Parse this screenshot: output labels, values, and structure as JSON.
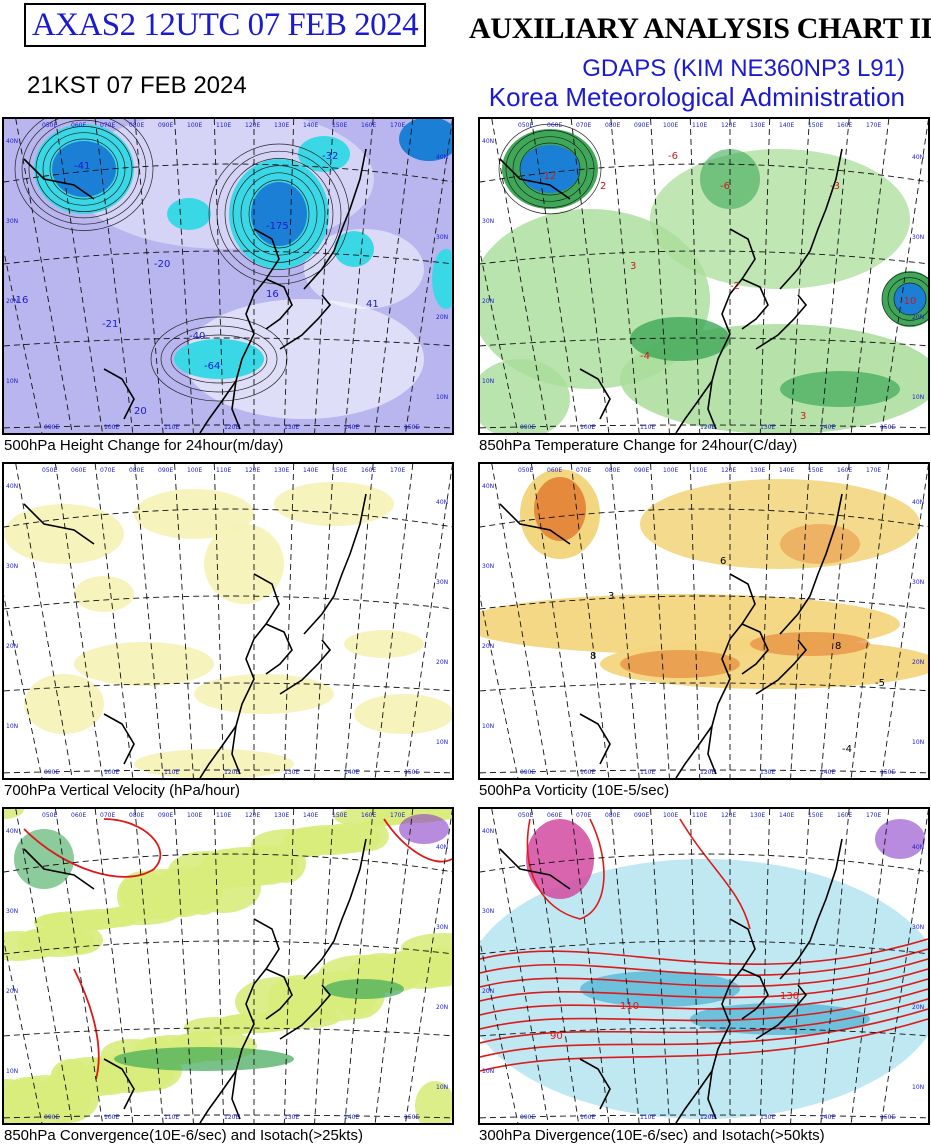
{
  "header": {
    "chart_id": "AXAS2  12UTC 07 FEB 2024",
    "local_time": "21KST 07 FEB 2024",
    "title": "AUXILIARY ANALYSIS CHART II",
    "model": "GDAPS (KIM NE360NP3 L91)",
    "agency": "Korea Meteorological Administration"
  },
  "colors": {
    "id_text": "#1a1ad0",
    "height_fill": "#b9b6ef",
    "height_strong": "#3ad8e6",
    "height_core": "#1c7fd6",
    "temp_fill": "#a9dd9a",
    "temp_strong": "#3fa858",
    "vvel_fill": "#f6f2b8",
    "vort_fill": "#f3d680",
    "vort_strong": "#e58a3c",
    "conv_fill": "#d8ec7c",
    "div_fill": "#b8e6f2",
    "isotach": "#dd1a1a"
  },
  "panels": [
    {
      "id": "p1",
      "caption": "500hPa Height Change for 24hour(m/day)",
      "labels": [
        "-41",
        "-175",
        "-32",
        "-64",
        "-16",
        "-21",
        "-40",
        "20",
        "16",
        "41",
        "-20"
      ]
    },
    {
      "id": "p2",
      "caption": "850hPa Temperature Change for 24hour(C/day)",
      "labels": [
        "-12",
        "-6",
        "-10",
        "2",
        "3",
        "-4",
        "-3",
        "-2",
        "-6",
        "3"
      ]
    },
    {
      "id": "p3",
      "caption": "700hPa Vertical Velocity (hPa/hour)",
      "labels": []
    },
    {
      "id": "p4",
      "caption": "500hPa Vorticity (10E-5/sec)",
      "labels": [
        "3",
        "6",
        "8",
        "-4",
        "-5",
        "8"
      ]
    },
    {
      "id": "p5",
      "caption": "850hPa Convergence(10E-6/sec) and Isotach(>25kts)",
      "labels": []
    },
    {
      "id": "p6",
      "caption": "300hPa Divergence(10E-6/sec) and Isotach(>50kts)",
      "labels": [
        "90",
        "110",
        "130"
      ]
    }
  ],
  "map_grid": {
    "lon_labels": [
      "050E",
      "060E",
      "070E",
      "080E",
      "090E",
      "100E",
      "110E",
      "120E",
      "130E",
      "140E",
      "150E",
      "160E",
      "170E"
    ],
    "lat_labels": [
      "40N",
      "30N",
      "20N",
      "10N"
    ]
  }
}
